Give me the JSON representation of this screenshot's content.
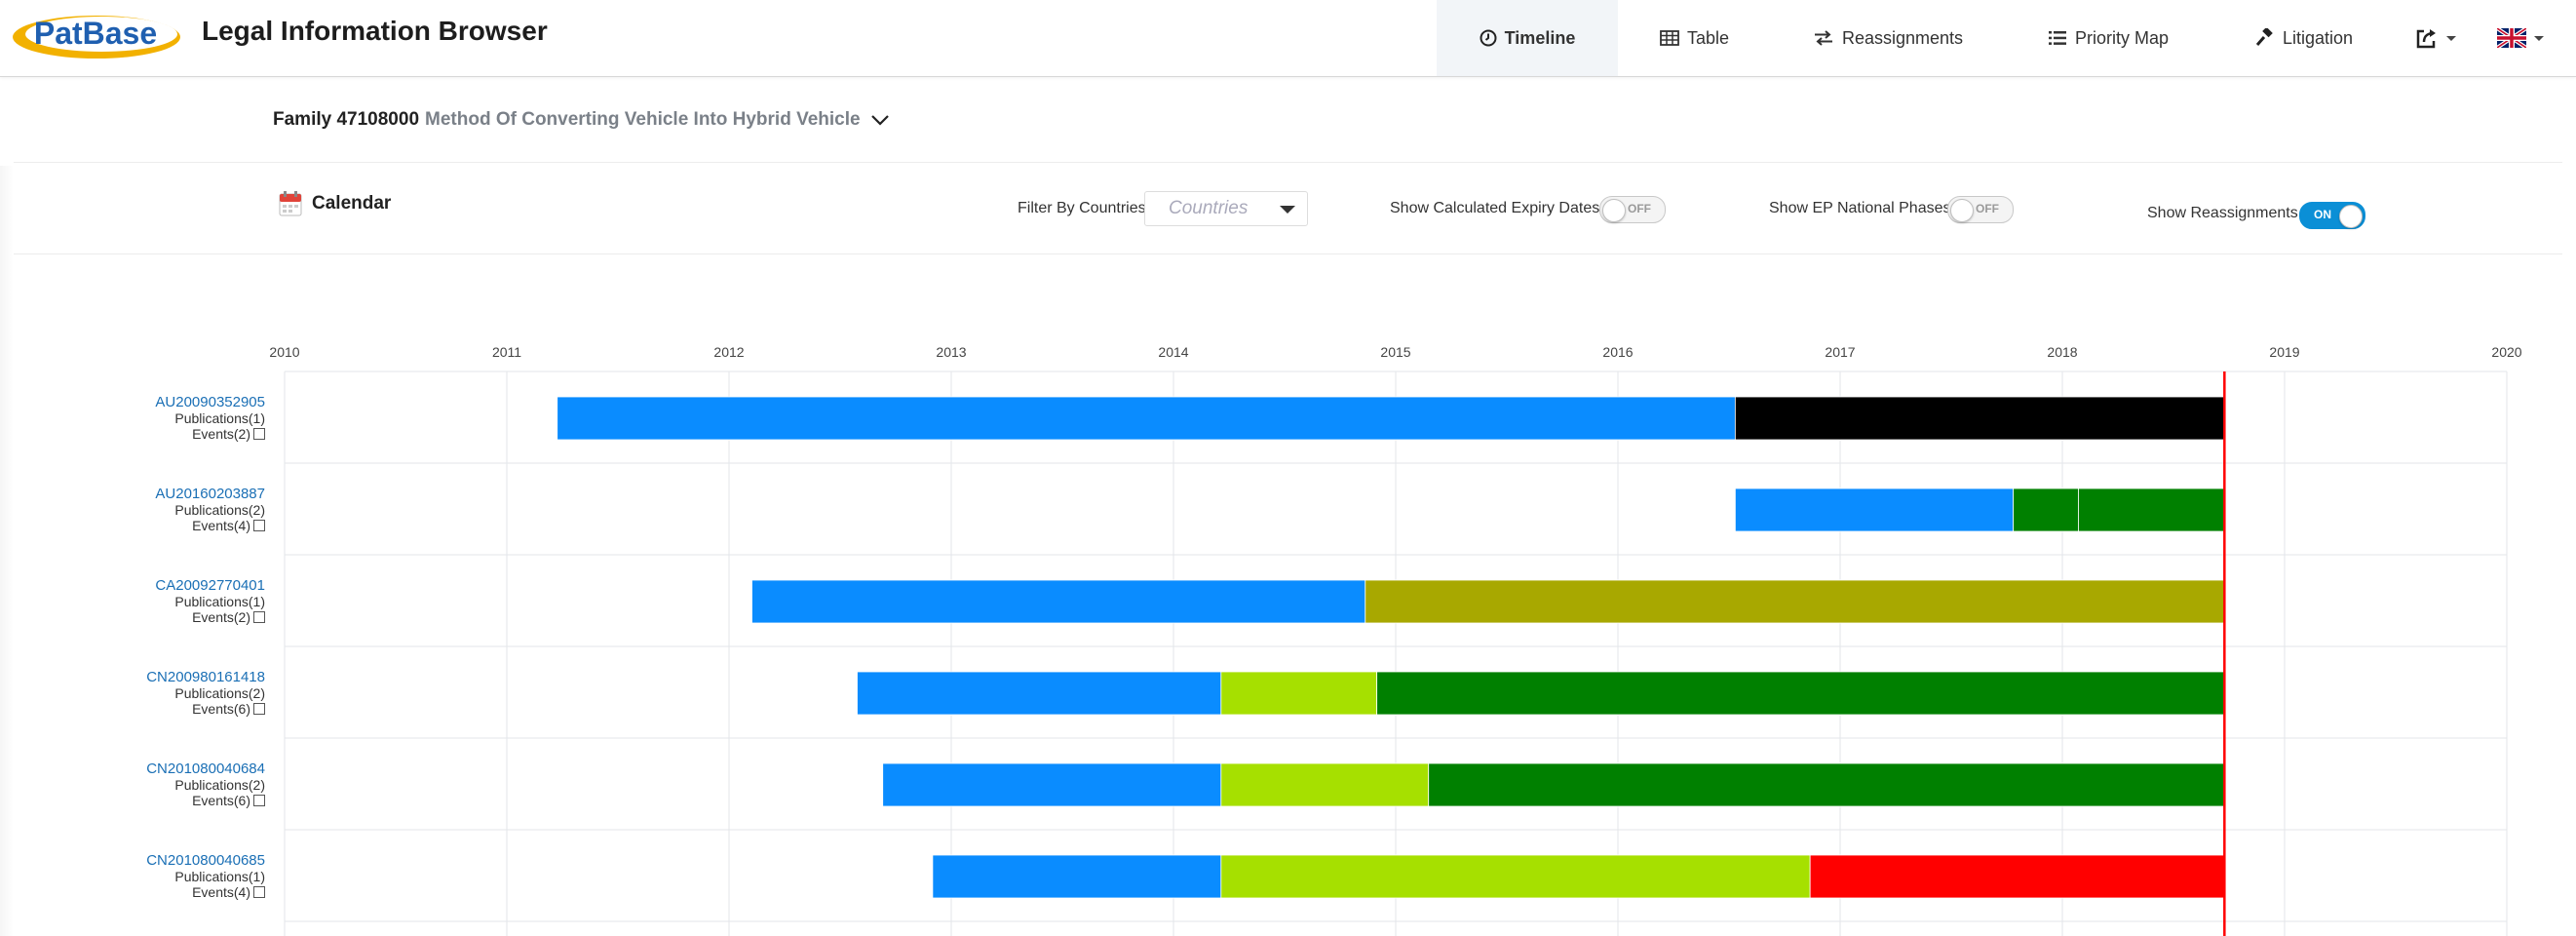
{
  "header": {
    "logo_text": "PatBase",
    "app_title": "Legal Information Browser",
    "nav": [
      {
        "label": "Timeline",
        "icon": "clock-icon",
        "active": true
      },
      {
        "label": "Table",
        "icon": "table-icon",
        "active": false
      },
      {
        "label": "Reassignments",
        "icon": "swap-arrows-icon",
        "active": false
      },
      {
        "label": "Priority Map",
        "icon": "list-icon",
        "active": false
      },
      {
        "label": "Litigation",
        "icon": "gavel-icon",
        "active": false
      }
    ],
    "export_icon": "share-icon",
    "language_icon": "uk-flag-icon"
  },
  "family": {
    "id_label": "Family 47108000",
    "title": "Method Of Converting Vehicle Into Hybrid Vehicle"
  },
  "controls": {
    "calendar_label": "Calendar",
    "filter_label": "Filter By Countries",
    "filter_placeholder": "Countries",
    "expiry_label": "Show Calculated Expiry Dates",
    "expiry_state": "OFF",
    "ep_label": "Show EP National Phases",
    "ep_state": "OFF",
    "reassign_label": "Show Reassignments",
    "reassign_state": "ON"
  },
  "colors": {
    "blue": "#0a8cff",
    "black": "#000000",
    "dark_green": "#008000",
    "olive": "#a8a800",
    "lime": "#a6e000",
    "red": "#ff0000",
    "today_line": "#ff0000",
    "link": "#1a6fb5"
  },
  "chart_data": {
    "type": "timeline",
    "x_ticks": [
      "2010",
      "2011",
      "2012",
      "2013",
      "2014",
      "2015",
      "2016",
      "2017",
      "2018",
      "2019",
      "2020"
    ],
    "xlim": [
      "2010-01-01",
      "2020-01-01"
    ],
    "today_marker": "2018-09-24",
    "rows": [
      {
        "number": "AU20090352905",
        "publications": "Publications(1)",
        "events": "Events(2)",
        "segments": [
          {
            "start": "2011-03-25",
            "end": "2016-07-12",
            "color": "blue"
          },
          {
            "start": "2016-07-12",
            "end": "2018-09-24",
            "color": "black"
          }
        ]
      },
      {
        "number": "AU20160203887",
        "publications": "Publications(2)",
        "events": "Events(4)",
        "segments": [
          {
            "start": "2016-07-12",
            "end": "2017-10-12",
            "color": "blue"
          },
          {
            "start": "2017-10-12",
            "end": "2018-01-27",
            "color": "dark_green"
          },
          {
            "start": "2018-01-27",
            "end": "2018-09-24",
            "color": "dark_green"
          }
        ]
      },
      {
        "number": "CA20092770401",
        "publications": "Publications(1)",
        "events": "Events(2)",
        "segments": [
          {
            "start": "2012-02-08",
            "end": "2014-11-12",
            "color": "blue"
          },
          {
            "start": "2014-11-12",
            "end": "2018-09-24",
            "color": "olive"
          }
        ]
      },
      {
        "number": "CN200980161418",
        "publications": "Publications(2)",
        "events": "Events(6)",
        "segments": [
          {
            "start": "2012-07-30",
            "end": "2014-03-20",
            "color": "blue"
          },
          {
            "start": "2014-03-20",
            "end": "2014-12-01",
            "color": "lime"
          },
          {
            "start": "2014-12-01",
            "end": "2018-09-24",
            "color": "dark_green"
          }
        ]
      },
      {
        "number": "CN201080040684",
        "publications": "Publications(2)",
        "events": "Events(6)",
        "segments": [
          {
            "start": "2012-09-10",
            "end": "2014-03-20",
            "color": "blue"
          },
          {
            "start": "2014-03-20",
            "end": "2015-02-24",
            "color": "lime"
          },
          {
            "start": "2015-02-24",
            "end": "2018-09-24",
            "color": "dark_green"
          }
        ]
      },
      {
        "number": "CN201080040685",
        "publications": "Publications(1)",
        "events": "Events(4)",
        "segments": [
          {
            "start": "2012-12-01",
            "end": "2014-03-20",
            "color": "blue"
          },
          {
            "start": "2014-03-20",
            "end": "2016-11-12",
            "color": "lime"
          },
          {
            "start": "2016-11-12",
            "end": "2018-09-24",
            "color": "red"
          }
        ]
      }
    ]
  }
}
